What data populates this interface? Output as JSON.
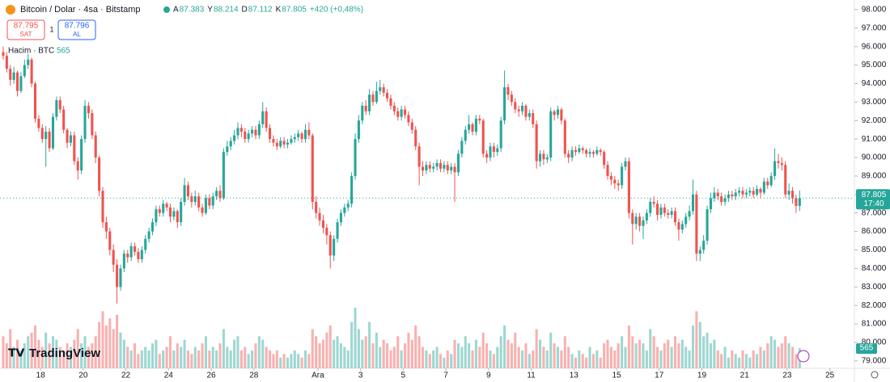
{
  "chart_data": {
    "type": "candlestick",
    "header": {
      "symbol": "Bitcoin / Dolar · 4sa · Bitstamp",
      "open_prefix": "A",
      "high_prefix": "Y",
      "low_prefix": "D",
      "close_prefix": "K",
      "change": "+420 (+0,48%)",
      "sell_price": "87.795",
      "sell_label": "SAT",
      "quantity": "1",
      "buy_price": "87.796",
      "buy_label": "AL",
      "volume_label": "Hacim · BTC",
      "countdown": "17:40",
      "brand": "TradingView"
    },
    "up_color": "#26a69a",
    "down_color": "#ef5350",
    "xlim": [
      -0.9,
      239.4
    ],
    "ylim": [
      78.6,
      98.52
    ],
    "xticks": [
      {
        "value": 10.5,
        "label": "18"
      },
      {
        "value": 22.5,
        "label": "20"
      },
      {
        "value": 34.5,
        "label": "22"
      },
      {
        "value": 46.5,
        "label": "24"
      },
      {
        "value": 58.5,
        "label": "26"
      },
      {
        "value": 70.5,
        "label": "28"
      },
      {
        "value": 88.5,
        "label": "Ara"
      },
      {
        "value": 100.5,
        "label": "3"
      },
      {
        "value": 112.5,
        "label": "5"
      },
      {
        "value": 124.5,
        "label": "7"
      },
      {
        "value": 136.5,
        "label": "9"
      },
      {
        "value": 148.5,
        "label": "11"
      },
      {
        "value": 160.5,
        "label": "13"
      },
      {
        "value": 172.5,
        "label": "15"
      },
      {
        "value": 184.5,
        "label": "17"
      },
      {
        "value": 196.5,
        "label": "19"
      },
      {
        "value": 208.5,
        "label": "21"
      },
      {
        "value": 220.5,
        "label": "23"
      },
      {
        "value": 232.5,
        "label": "25"
      }
    ],
    "yticks": [
      {
        "value": 79,
        "label": "79.000"
      },
      {
        "value": 80,
        "label": "80.000"
      },
      {
        "value": 81,
        "label": "81.000"
      },
      {
        "value": 82,
        "label": "82.000"
      },
      {
        "value": 83,
        "label": "83.000"
      },
      {
        "value": 84,
        "label": "84.000"
      },
      {
        "value": 85,
        "label": "85.000"
      },
      {
        "value": 86,
        "label": "86.000"
      },
      {
        "value": 87,
        "label": "87.000"
      },
      {
        "value": 88,
        "label": "88.000"
      },
      {
        "value": 89,
        "label": "89.000"
      },
      {
        "value": 90,
        "label": "90.000"
      },
      {
        "value": 91,
        "label": "91.000"
      },
      {
        "value": 92,
        "label": "92.000"
      },
      {
        "value": 93,
        "label": "93.000"
      },
      {
        "value": 94,
        "label": "94.000"
      },
      {
        "value": 95,
        "label": "95.000"
      },
      {
        "value": 96,
        "label": "96.000"
      },
      {
        "value": 97,
        "label": "97.000"
      },
      {
        "value": 98,
        "label": "98.000"
      }
    ],
    "open": [
      95.7,
      95.5,
      94.8,
      94.2,
      94.6,
      93.6,
      94.4,
      95.0,
      95.3,
      94.0,
      92.1,
      91.6,
      91.0,
      91.4,
      90.5,
      92.2,
      93.1,
      92.6,
      91.5,
      90.8,
      91.2,
      89.8,
      89.3,
      91.0,
      92.8,
      92.4,
      91.2,
      90.0,
      88.2,
      86.5,
      86.0,
      85.0,
      84.2,
      83.0,
      84.0,
      84.8,
      84.6,
      85.2,
      84.9,
      84.5,
      85.0,
      85.6,
      86.0,
      86.5,
      87.2,
      87.0,
      87.5,
      87.3,
      86.8,
      87.1,
      86.5,
      87.6,
      88.5,
      87.9,
      87.6,
      87.9,
      87.3,
      87.0,
      87.8,
      87.4,
      87.9,
      88.2,
      87.8,
      90.3,
      90.6,
      90.9,
      91.2,
      91.6,
      91.4,
      91.0,
      91.3,
      91.5,
      91.2,
      91.8,
      92.5,
      91.6,
      91.0,
      90.8,
      90.6,
      90.9,
      90.7,
      90.8,
      91.0,
      91.1,
      91.3,
      91.0,
      91.5,
      91.2,
      87.6,
      87.0,
      86.6,
      86.2,
      85.8,
      84.7,
      85.6,
      86.5,
      87.0,
      87.3,
      87.5,
      89.0,
      91.0,
      92.0,
      92.8,
      92.5,
      93.4,
      93.0,
      93.6,
      93.8,
      93.5,
      93.2,
      92.8,
      92.5,
      92.2,
      92.6,
      92.3,
      91.9,
      91.5,
      90.6,
      89.5,
      89.3,
      89.6,
      89.4,
      89.5,
      89.7,
      89.4,
      89.6,
      89.3,
      89.5,
      89.2,
      90.2,
      90.9,
      91.5,
      91.8,
      91.4,
      92.1,
      92.0,
      90.2,
      90.0,
      90.6,
      90.3,
      90.5,
      92.0,
      93.8,
      93.4,
      93.0,
      92.6,
      92.5,
      92.8,
      92.2,
      92.4,
      91.8,
      89.8,
      90.2,
      89.9,
      90.0,
      92.5,
      92.3,
      92.6,
      92.0,
      90.2,
      90.0,
      90.4,
      90.3,
      90.5,
      90.4,
      90.2,
      90.3,
      90.2,
      90.4,
      90.3,
      89.6,
      89.0,
      88.8,
      88.6,
      88.5,
      89.5,
      89.8,
      87.0,
      86.4,
      86.8,
      86.3,
      86.6,
      87.0,
      87.6,
      87.5,
      86.9,
      87.3,
      87.0,
      86.9,
      87.1,
      86.5,
      86.1,
      86.4,
      86.8,
      87.1,
      88.0,
      84.8,
      85.0,
      85.5,
      87.2,
      87.8,
      88.1,
      87.9,
      87.6,
      87.8,
      88.0,
      87.9,
      88.1,
      88.2,
      88.0,
      88.1,
      88.2,
      88.0,
      88.3,
      88.1,
      88.7,
      88.5,
      89.0,
      89.8,
      89.7,
      89.6,
      88.0,
      88.2,
      87.8,
      87.383
    ],
    "high": [
      96.0,
      95.7,
      95.0,
      94.9,
      94.7,
      94.6,
      95.3,
      95.6,
      95.4,
      94.1,
      92.3,
      91.8,
      91.7,
      91.6,
      92.4,
      93.3,
      93.3,
      92.8,
      91.6,
      91.4,
      91.4,
      90.0,
      91.2,
      93.1,
      93.0,
      92.6,
      91.4,
      90.1,
      88.4,
      86.8,
      86.2,
      85.3,
      84.5,
      84.2,
      85.0,
      85.0,
      85.4,
      85.4,
      85.1,
      85.2,
      85.8,
      86.2,
      86.7,
      87.4,
      87.4,
      87.7,
      87.6,
      87.5,
      87.3,
      87.2,
      87.8,
      88.9,
      88.7,
      88.1,
      88.2,
      88.1,
      87.5,
      88.0,
      88.0,
      88.1,
      88.4,
      88.5,
      90.5,
      90.9,
      91.1,
      91.5,
      91.9,
      91.8,
      91.6,
      91.5,
      91.7,
      91.7,
      92.0,
      93.0,
      92.7,
      91.8,
      91.2,
      91.0,
      91.1,
      91.1,
      91.0,
      91.2,
      91.3,
      91.5,
      91.4,
      91.8,
      91.9,
      91.3,
      87.9,
      87.3,
      86.9,
      86.4,
      86.0,
      85.8,
      86.7,
      87.2,
      87.5,
      87.7,
      89.2,
      91.3,
      92.3,
      93.0,
      93.1,
      93.7,
      93.6,
      94.1,
      94.2,
      94.0,
      93.7,
      93.4,
      93.0,
      92.7,
      92.8,
      92.8,
      92.5,
      92.1,
      91.7,
      90.8,
      89.8,
      89.8,
      89.8,
      89.7,
      89.9,
      89.9,
      89.8,
      89.8,
      89.7,
      89.7,
      90.4,
      91.1,
      91.7,
      92.3,
      91.9,
      92.3,
      92.3,
      92.1,
      90.4,
      90.8,
      90.8,
      90.7,
      92.2,
      94.7,
      94.0,
      93.6,
      93.2,
      92.8,
      93.0,
      92.9,
      92.6,
      92.6,
      92.0,
      90.4,
      90.4,
      90.2,
      92.7,
      92.6,
      92.8,
      92.7,
      92.1,
      90.4,
      90.6,
      90.6,
      90.7,
      90.6,
      90.5,
      90.5,
      90.4,
      90.6,
      90.5,
      90.4,
      89.8,
      89.2,
      89.0,
      88.8,
      89.7,
      90.0,
      90.0,
      87.2,
      87.0,
      87.0,
      86.8,
      87.2,
      87.8,
      87.9,
      87.7,
      87.5,
      87.5,
      87.2,
      87.3,
      87.3,
      86.7,
      86.6,
      87.0,
      87.4,
      88.8,
      88.2,
      85.2,
      85.8,
      87.4,
      88.1,
      88.4,
      88.3,
      88.1,
      88.0,
      88.2,
      88.2,
      88.3,
      88.4,
      88.4,
      88.3,
      88.4,
      88.4,
      88.5,
      88.4,
      88.9,
      88.9,
      89.2,
      90.5,
      90.2,
      90.0,
      89.8,
      88.6,
      88.4,
      88.0,
      88.214
    ],
    "low": [
      95.3,
      94.6,
      93.9,
      94.0,
      93.3,
      93.5,
      94.3,
      94.8,
      93.8,
      91.9,
      91.4,
      90.8,
      89.5,
      90.3,
      90.4,
      92.0,
      92.4,
      91.3,
      90.5,
      90.6,
      89.6,
      88.8,
      89.1,
      90.8,
      92.1,
      91.0,
      89.7,
      87.9,
      86.2,
      85.6,
      84.7,
      83.8,
      82.1,
      82.8,
      83.8,
      84.3,
      84.4,
      84.7,
      84.3,
      84.3,
      84.8,
      85.4,
      85.8,
      86.3,
      86.8,
      86.8,
      87.1,
      86.5,
      86.6,
      86.2,
      86.3,
      87.4,
      87.7,
      87.3,
      87.4,
      87.1,
      86.8,
      86.9,
      87.2,
      87.2,
      87.7,
      87.6,
      87.7,
      90.1,
      90.4,
      90.7,
      91.0,
      91.1,
      90.8,
      90.8,
      91.1,
      91.0,
      91.0,
      91.6,
      91.4,
      90.8,
      90.6,
      90.4,
      90.5,
      90.5,
      90.5,
      90.7,
      90.8,
      90.9,
      90.8,
      90.8,
      91.0,
      87.2,
      86.7,
      86.3,
      85.9,
      85.3,
      84.0,
      84.4,
      85.4,
      86.3,
      86.8,
      87.1,
      87.3,
      88.8,
      90.8,
      91.8,
      92.3,
      92.3,
      92.8,
      92.9,
      93.4,
      93.3,
      93.0,
      92.6,
      92.3,
      92.0,
      92.0,
      92.1,
      91.7,
      91.3,
      90.4,
      88.5,
      89.0,
      89.1,
      89.2,
      89.2,
      89.3,
      89.2,
      89.2,
      89.1,
      89.1,
      87.6,
      89.0,
      90.0,
      90.7,
      91.3,
      91.2,
      91.2,
      91.8,
      90.0,
      89.7,
      89.8,
      90.0,
      90.1,
      90.3,
      91.8,
      93.1,
      92.8,
      92.4,
      92.2,
      92.3,
      92.0,
      92.0,
      91.6,
      89.4,
      89.5,
      89.6,
      89.7,
      89.8,
      92.0,
      92.1,
      91.8,
      90.0,
      89.7,
      89.8,
      90.1,
      90.2,
      90.2,
      90.0,
      90.0,
      90.0,
      90.1,
      90.1,
      89.4,
      88.8,
      88.5,
      88.3,
      88.2,
      88.3,
      89.3,
      86.7,
      85.3,
      86.1,
      86.0,
      85.6,
      86.4,
      86.8,
      87.3,
      86.6,
      86.7,
      86.8,
      86.7,
      86.7,
      86.3,
      85.5,
      85.9,
      86.2,
      86.6,
      86.9,
      84.4,
      84.4,
      84.8,
      85.3,
      87.0,
      87.6,
      87.7,
      87.4,
      87.4,
      87.6,
      87.7,
      87.7,
      87.9,
      87.8,
      87.8,
      87.9,
      87.8,
      87.9,
      87.8,
      88.0,
      88.3,
      88.4,
      88.8,
      89.4,
      89.3,
      87.8,
      87.7,
      87.5,
      87.0,
      87.112
    ],
    "close": [
      95.5,
      94.8,
      94.2,
      94.6,
      93.6,
      94.4,
      95.0,
      95.3,
      94.0,
      92.1,
      91.6,
      91.0,
      91.4,
      90.5,
      92.2,
      93.1,
      92.6,
      91.5,
      90.8,
      91.2,
      89.8,
      89.3,
      91.0,
      92.8,
      92.4,
      91.2,
      90.0,
      88.2,
      86.5,
      86.0,
      85.0,
      84.2,
      83.0,
      84.0,
      84.8,
      84.6,
      85.2,
      84.9,
      84.5,
      85.0,
      85.6,
      86.0,
      86.5,
      87.2,
      87.0,
      87.5,
      87.3,
      86.8,
      87.1,
      86.5,
      87.6,
      88.5,
      87.9,
      87.6,
      87.9,
      87.3,
      87.0,
      87.8,
      87.4,
      87.9,
      88.2,
      87.8,
      90.3,
      90.6,
      90.9,
      91.2,
      91.6,
      91.4,
      91.0,
      91.3,
      91.5,
      91.2,
      91.8,
      92.5,
      91.6,
      91.0,
      90.8,
      90.6,
      90.9,
      90.7,
      90.8,
      91.0,
      91.1,
      91.3,
      91.0,
      91.5,
      91.2,
      87.6,
      87.0,
      86.6,
      86.2,
      85.8,
      84.7,
      85.6,
      86.5,
      87.0,
      87.3,
      87.5,
      89.0,
      91.0,
      92.0,
      92.8,
      92.5,
      93.4,
      93.0,
      93.6,
      93.8,
      93.5,
      93.2,
      92.8,
      92.5,
      92.2,
      92.6,
      92.3,
      91.9,
      91.5,
      90.6,
      89.5,
      89.3,
      89.6,
      89.4,
      89.5,
      89.7,
      89.4,
      89.6,
      89.3,
      89.5,
      89.2,
      90.2,
      90.9,
      91.5,
      91.8,
      91.4,
      92.1,
      92.0,
      90.2,
      90.0,
      90.6,
      90.3,
      90.5,
      92.0,
      93.8,
      93.4,
      93.0,
      92.6,
      92.5,
      92.8,
      92.2,
      92.4,
      91.8,
      89.8,
      90.2,
      89.9,
      90.0,
      92.5,
      92.3,
      92.6,
      92.0,
      90.2,
      90.0,
      90.4,
      90.3,
      90.5,
      90.4,
      90.2,
      90.3,
      90.2,
      90.4,
      90.3,
      89.6,
      89.0,
      88.8,
      88.6,
      88.5,
      89.5,
      89.8,
      87.0,
      86.4,
      86.8,
      86.3,
      86.6,
      87.0,
      87.6,
      87.5,
      86.9,
      87.3,
      87.0,
      86.9,
      87.1,
      86.5,
      86.1,
      86.4,
      86.8,
      87.1,
      88.0,
      84.8,
      85.0,
      85.5,
      87.2,
      87.8,
      88.1,
      87.9,
      87.6,
      87.8,
      88.0,
      87.9,
      88.1,
      88.2,
      88.0,
      88.1,
      88.2,
      88.0,
      88.3,
      88.1,
      88.7,
      88.5,
      89.0,
      89.8,
      89.7,
      89.6,
      88.0,
      88.2,
      87.8,
      87.383,
      87.805
    ],
    "volume": [
      900,
      700,
      1100,
      600,
      800,
      500,
      700,
      900,
      1000,
      1200,
      800,
      600,
      1000,
      700,
      900,
      800,
      600,
      500,
      700,
      600,
      800,
      1100,
      700,
      900,
      600,
      700,
      900,
      1300,
      1600,
      1200,
      1400,
      1100,
      1500,
      1000,
      800,
      600,
      500,
      700,
      400,
      500,
      600,
      500,
      700,
      800,
      400,
      500,
      600,
      900,
      500,
      700,
      600,
      800,
      500,
      400,
      600,
      500,
      700,
      900,
      500,
      600,
      500,
      700,
      1100,
      600,
      500,
      800,
      900,
      500,
      600,
      400,
      500,
      700,
      900,
      800,
      600,
      500,
      400,
      500,
      300,
      400,
      300,
      400,
      500,
      400,
      300,
      500,
      400,
      1100,
      900,
      700,
      800,
      1000,
      1200,
      800,
      900,
      700,
      600,
      500,
      1300,
      1700,
      1100,
      800,
      900,
      1300,
      700,
      1000,
      600,
      800,
      700,
      500,
      600,
      900,
      500,
      700,
      1000,
      800,
      1200,
      900,
      600,
      500,
      400,
      500,
      600,
      400,
      300,
      500,
      400,
      800,
      700,
      600,
      900,
      700,
      500,
      800,
      600,
      1000,
      700,
      500,
      400,
      600,
      900,
      1200,
      800,
      700,
      1000,
      600,
      500,
      700,
      400,
      500,
      1100,
      800,
      600,
      500,
      1000,
      700,
      600,
      500,
      900,
      600,
      400,
      300,
      500,
      400,
      300,
      600,
      400,
      500,
      300,
      700,
      800,
      600,
      500,
      700,
      900,
      600,
      1200,
      900,
      700,
      800,
      700,
      500,
      1100,
      900,
      600,
      500,
      700,
      800,
      600,
      900,
      700,
      800,
      600,
      500,
      1200,
      1600,
      1300,
      900,
      1000,
      700,
      800,
      500,
      400,
      600,
      300,
      500,
      400,
      300,
      500,
      400,
      300,
      500,
      400,
      600,
      500,
      700,
      900,
      800,
      600,
      700,
      900,
      700,
      600,
      400,
      565
    ]
  }
}
